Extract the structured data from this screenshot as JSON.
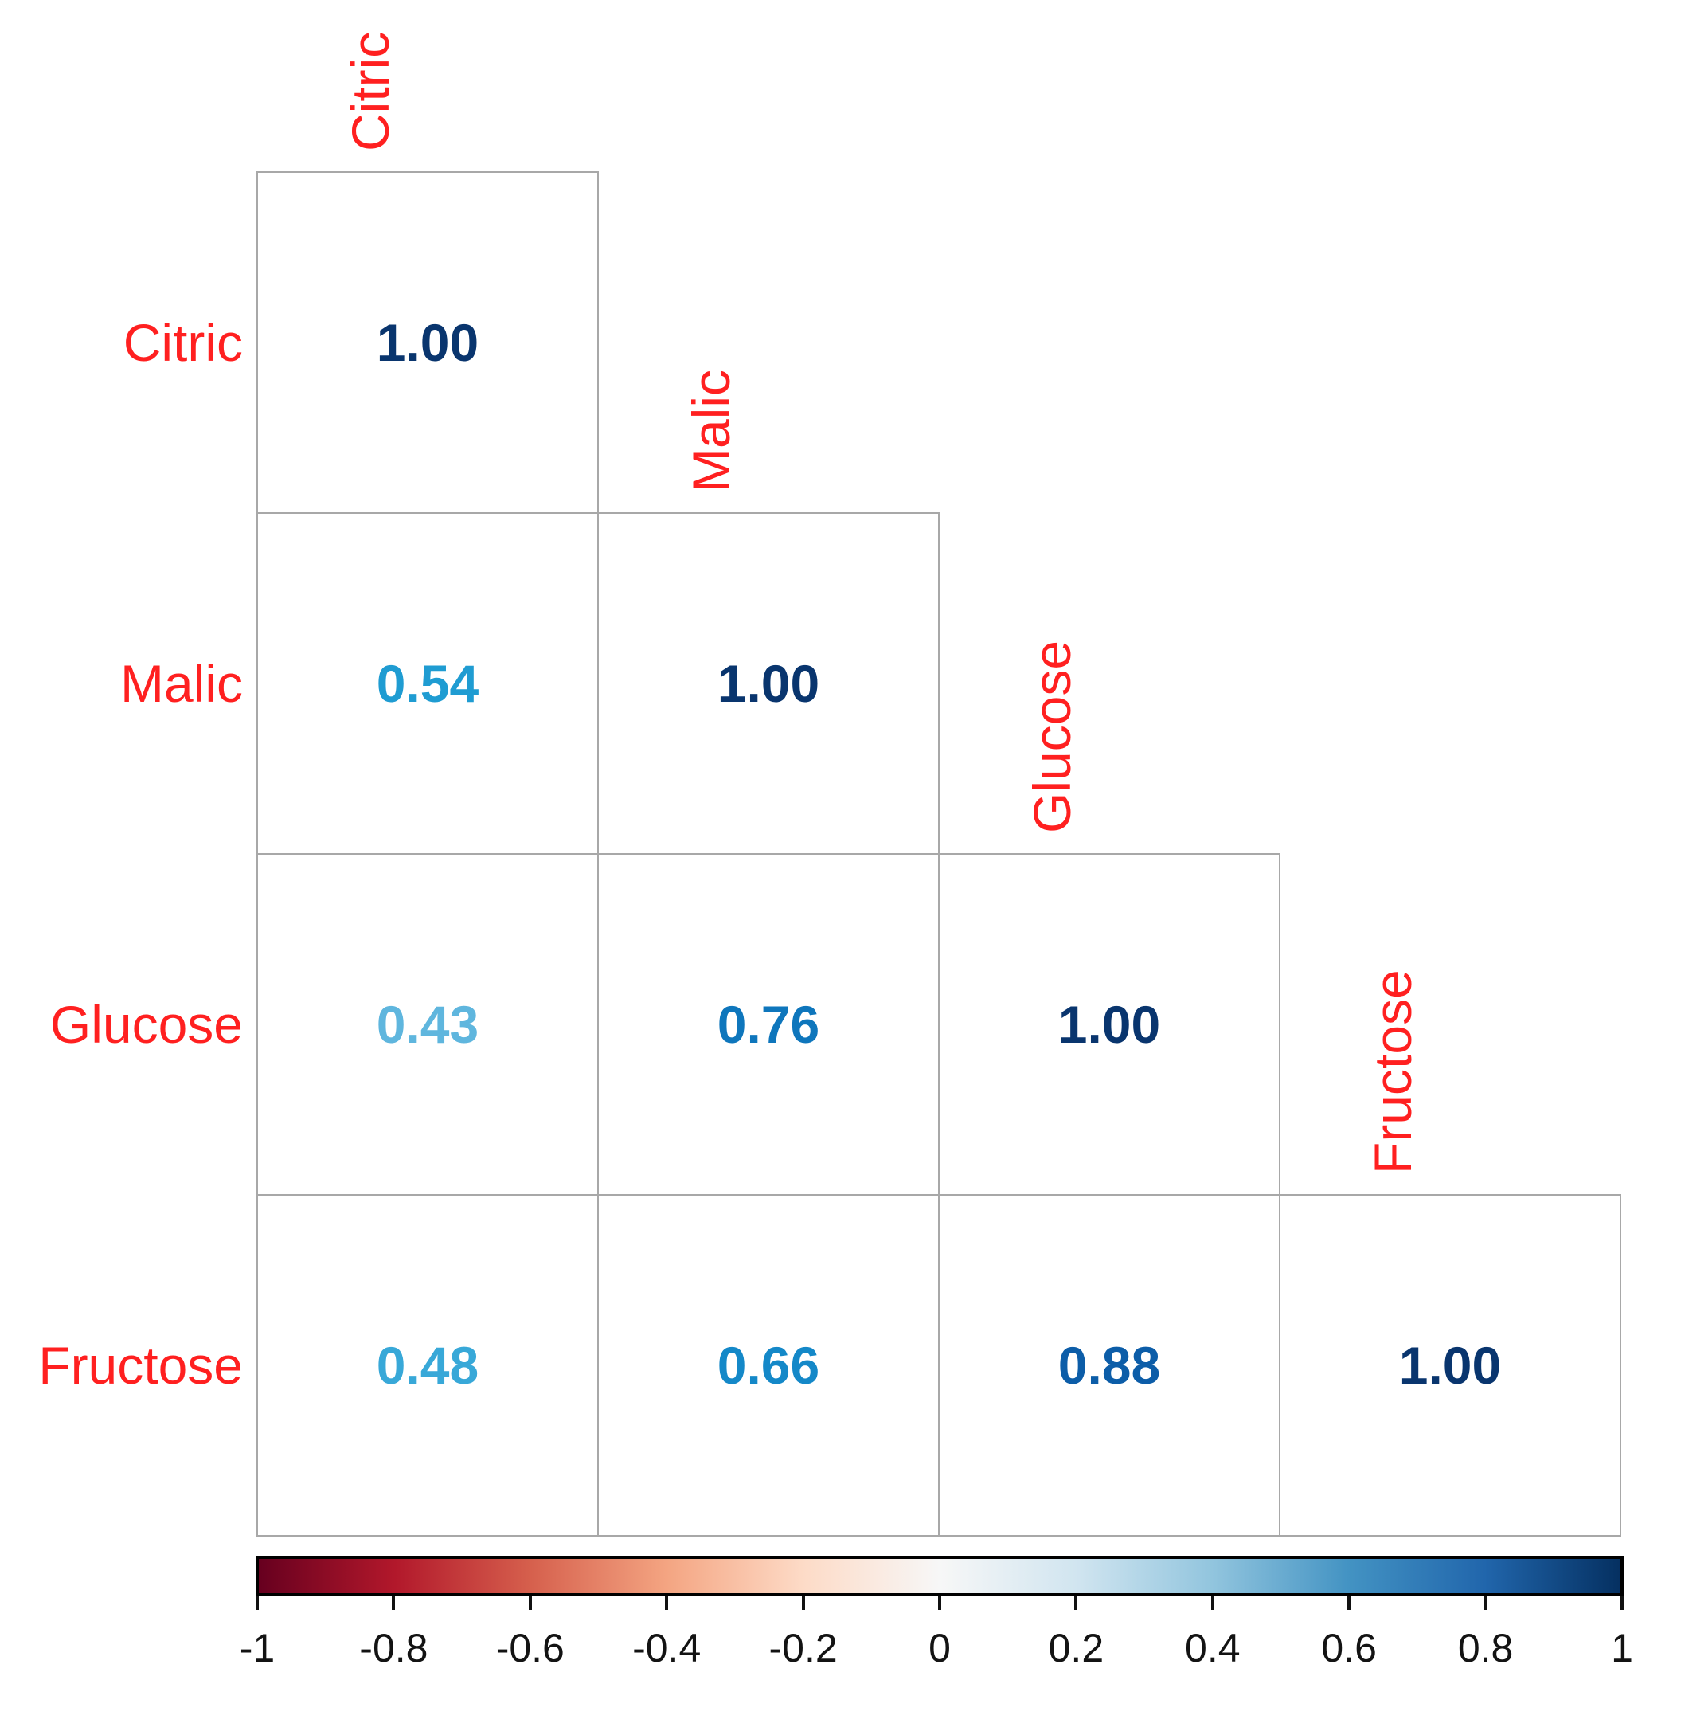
{
  "chart_data": {
    "type": "heatmap",
    "subtype": "correlation-matrix-lower-triangle",
    "title": "",
    "variables": [
      "Citric",
      "Malic",
      "Glucose",
      "Fructose"
    ],
    "matrix": [
      [
        1.0
      ],
      [
        0.54,
        1.0
      ],
      [
        0.43,
        0.76,
        1.0
      ],
      [
        0.48,
        0.66,
        0.88,
        1.0
      ]
    ],
    "value_labels": [
      [
        "1.00"
      ],
      [
        "0.54",
        "1.00"
      ],
      [
        "0.43",
        "0.76",
        "1.00"
      ],
      [
        "0.48",
        "0.66",
        "0.88",
        "1.00"
      ]
    ],
    "value_colors": [
      [
        "#09356E"
      ],
      [
        "#1F9CD2",
        "#09356E"
      ],
      [
        "#5FB6DE",
        "#0E76BC",
        "#09356E"
      ],
      [
        "#38A8D8",
        "#1488C8",
        "#0C5DA8",
        "#09356E"
      ]
    ],
    "label_color": "#FF2020",
    "grid_line_color": "#A8A8A8",
    "cell_background": "#FFFFFF",
    "colorbar": {
      "orientation": "horizontal",
      "position": "bottom",
      "range": [
        -1,
        1
      ],
      "tick_labels": [
        "-1",
        "-0.8",
        "-0.6",
        "-0.4",
        "-0.2",
        "0",
        "0.2",
        "0.4",
        "0.6",
        "0.8",
        "1"
      ],
      "gradient_stops": [
        "#67001F",
        "#B2182B",
        "#D6604D",
        "#F4A582",
        "#FDDBC7",
        "#F7F7F7",
        "#D1E5F0",
        "#92C5DE",
        "#4393C3",
        "#2166AC",
        "#053061"
      ],
      "border_color": "#000000",
      "tick_color": "#111111",
      "tick_label_color": "#131313"
    }
  }
}
